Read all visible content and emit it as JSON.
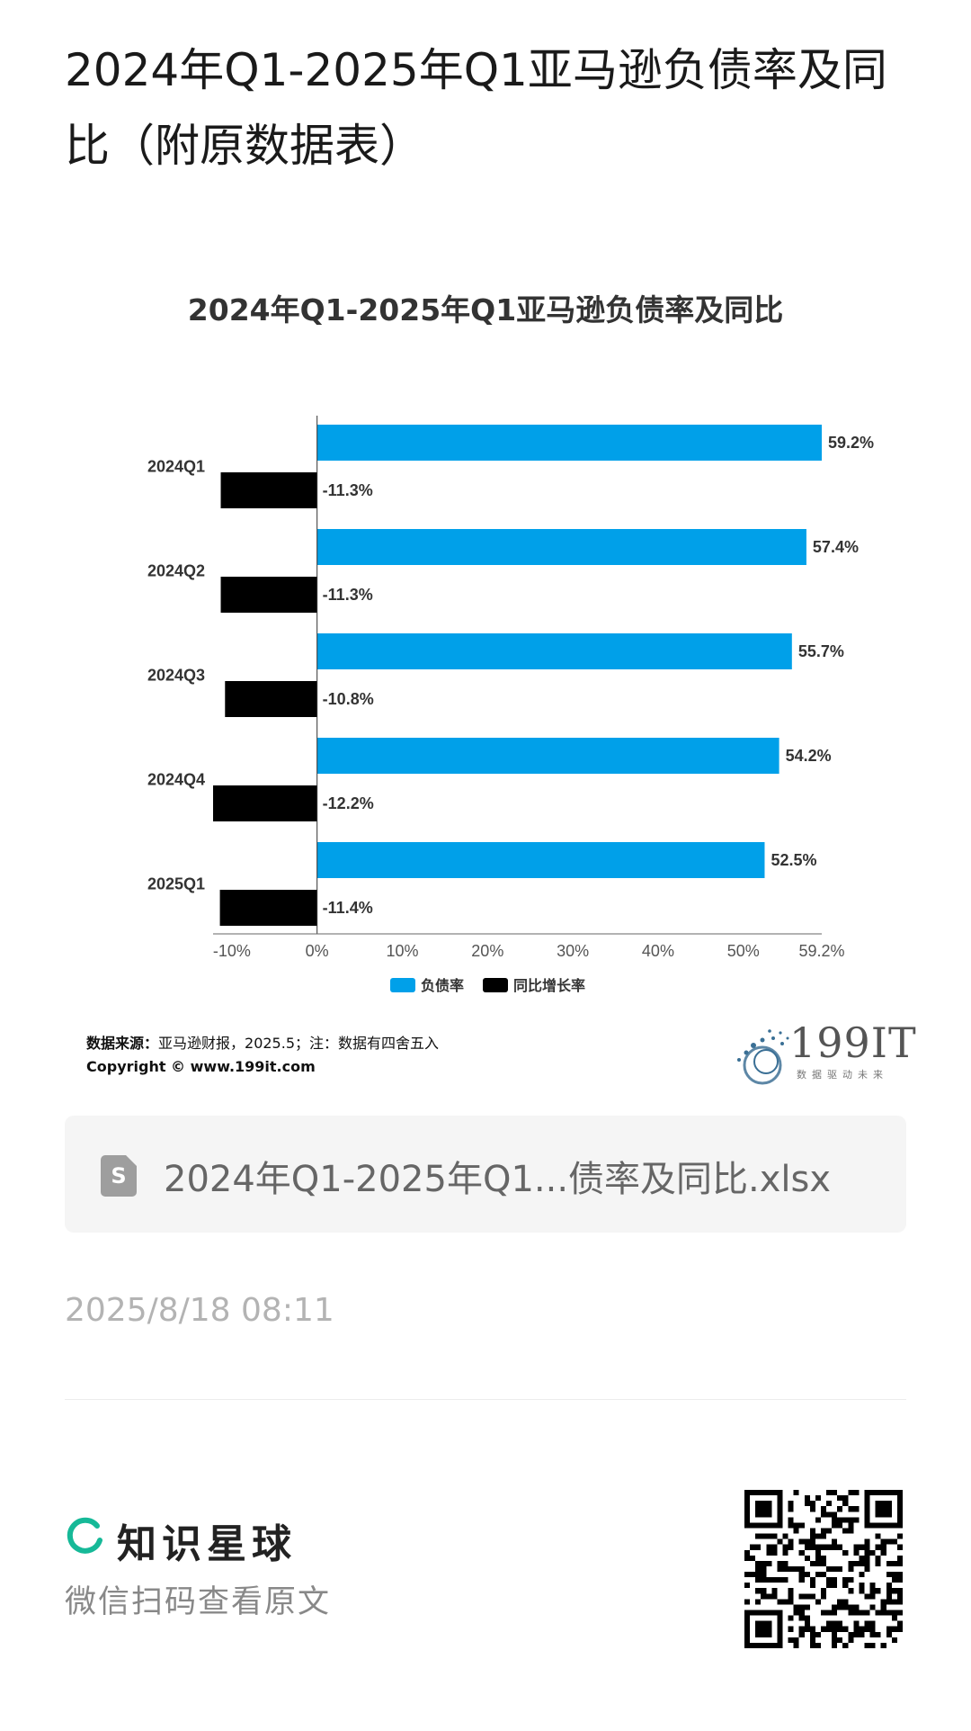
{
  "page": {
    "title": "2024年Q1-2025年Q1亚马逊负债率及同比（附原数据表）"
  },
  "chart_data": {
    "type": "bar",
    "orientation": "horizontal",
    "title": "2024年Q1-2025年Q1亚马逊负债率及同比",
    "categories": [
      "2024Q1",
      "2024Q2",
      "2024Q3",
      "2024Q4",
      "2025Q1"
    ],
    "series": [
      {
        "name": "负债率",
        "color": "#00a0e9",
        "values": [
          59.2,
          57.4,
          55.7,
          54.2,
          52.5
        ],
        "labels": [
          "59.2%",
          "57.4%",
          "55.7%",
          "54.2%",
          "52.5%"
        ]
      },
      {
        "name": "同比增长率",
        "color": "#000000",
        "values": [
          -11.3,
          -11.3,
          -10.8,
          -12.2,
          -11.4
        ],
        "labels": [
          "-11.3%",
          "-11.3%",
          "-10.8%",
          "-12.2%",
          "-11.4%"
        ]
      }
    ],
    "xlim": [
      -12.2,
      59.2
    ],
    "xticks": [
      -10,
      0,
      10,
      20,
      30,
      40,
      50,
      59.2
    ],
    "xtick_labels": [
      "-10%",
      "0%",
      "10%",
      "20%",
      "30%",
      "40%",
      "50%",
      "59.2%"
    ],
    "grid": false,
    "legend_position": "bottom-center"
  },
  "footnote": {
    "source_label": "数据来源：",
    "source_text": "亚马逊财报，2025.5；注：数据有四舍五入",
    "copyright": "Copyright © www.199it.com"
  },
  "brand": {
    "name": "199IT",
    "tagline": "数据驱动未来"
  },
  "file_card": {
    "icon_letter": "S",
    "file_name": "2024年Q1-2025年Q1...债率及同比.xlsx"
  },
  "timestamp": "2025/8/18 08:11",
  "footer": {
    "platform_name": "知识星球",
    "scan_hint": "微信扫码查看原文",
    "accent_color": "#16b998"
  }
}
